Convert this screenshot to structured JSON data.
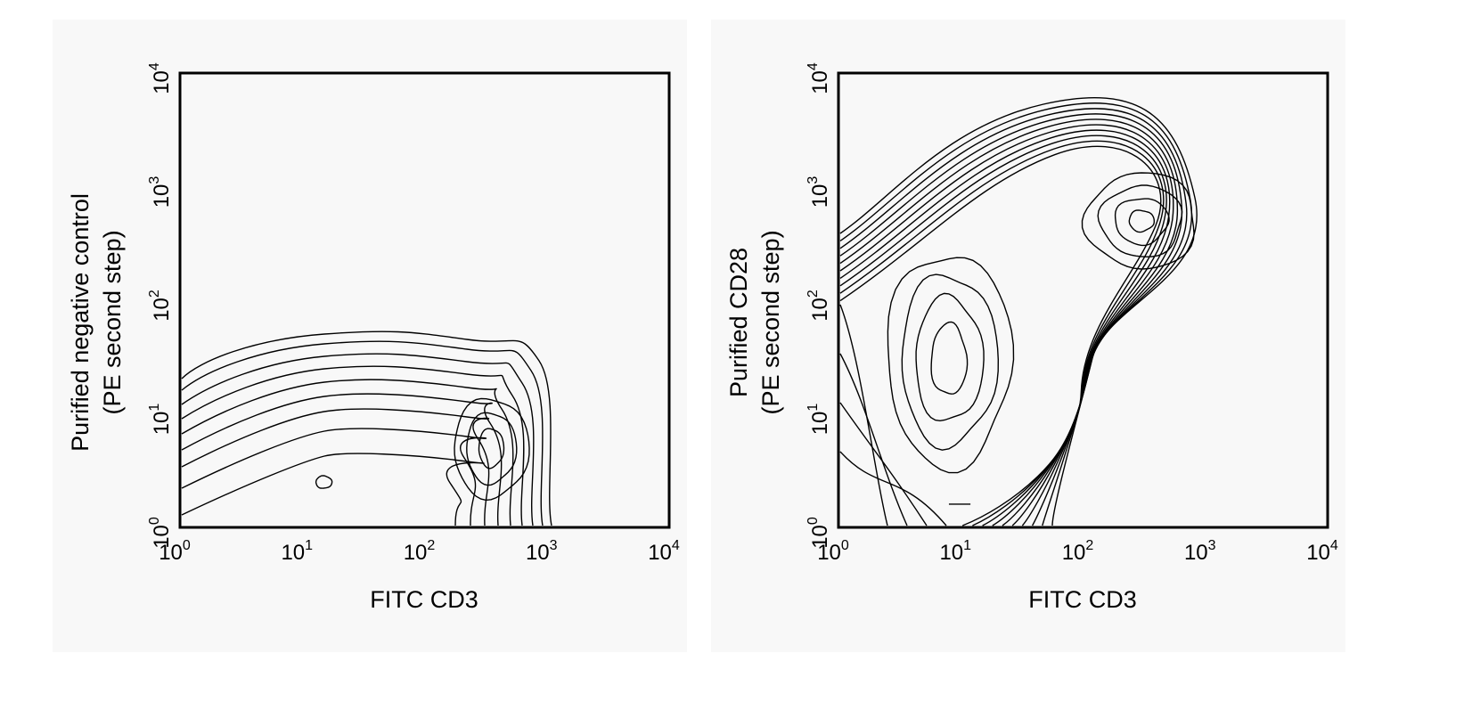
{
  "chart_data": [
    {
      "type": "contour",
      "xlabel": "FITC CD3",
      "ylabel_lines": [
        "Purified negative control",
        "(PE second step)"
      ],
      "x_scale": "log",
      "y_scale": "log",
      "xlim": [
        1,
        10000
      ],
      "ylim": [
        1,
        10000
      ],
      "tick_exponents": [
        0,
        1,
        2,
        3,
        4
      ],
      "tick_base": "10",
      "population_peaks": [
        {
          "x": 15,
          "y": 2.5
        },
        {
          "x": 350,
          "y": 5
        }
      ],
      "contour_levels": 9
    },
    {
      "type": "contour",
      "xlabel": "FITC CD3",
      "ylabel_lines": [
        "Purified CD28",
        "(PE second step)"
      ],
      "x_scale": "log",
      "y_scale": "log",
      "xlim": [
        1,
        10000
      ],
      "ylim": [
        1,
        10000
      ],
      "tick_exponents": [
        0,
        1,
        2,
        3,
        4
      ],
      "tick_base": "10",
      "population_peaks": [
        {
          "x": 8,
          "y": 30
        },
        {
          "x": 300,
          "y": 500
        }
      ],
      "contour_levels": 10
    }
  ]
}
